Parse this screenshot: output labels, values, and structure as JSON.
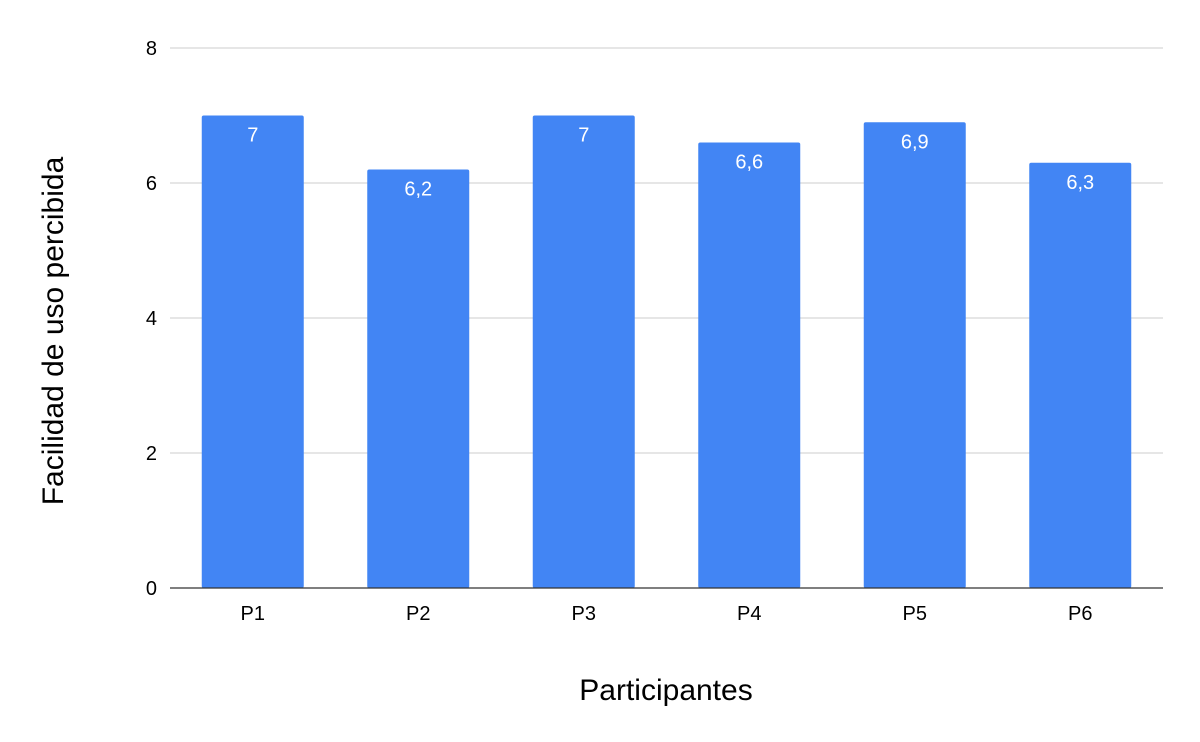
{
  "chart_data": {
    "type": "bar",
    "title": "",
    "xlabel": "Participantes",
    "ylabel": "Facilidad de uso percibida",
    "categories": [
      "P1",
      "P2",
      "P3",
      "P4",
      "P5",
      "P6"
    ],
    "values": [
      7,
      6.2,
      7,
      6.6,
      6.9,
      6.3
    ],
    "value_labels": [
      "7",
      "6,2",
      "7",
      "6,6",
      "6,9",
      "6,3"
    ],
    "ylim": [
      0,
      8
    ],
    "yticks": [
      0,
      2,
      4,
      6,
      8
    ],
    "ytick_labels": [
      "0",
      "2",
      "4",
      "6",
      "8"
    ],
    "grid": true,
    "legend": "none",
    "colors": {
      "bar": "#4285f4",
      "grid": "#cccccc",
      "axis": "#333333",
      "bar_label": "#ffffff"
    }
  }
}
